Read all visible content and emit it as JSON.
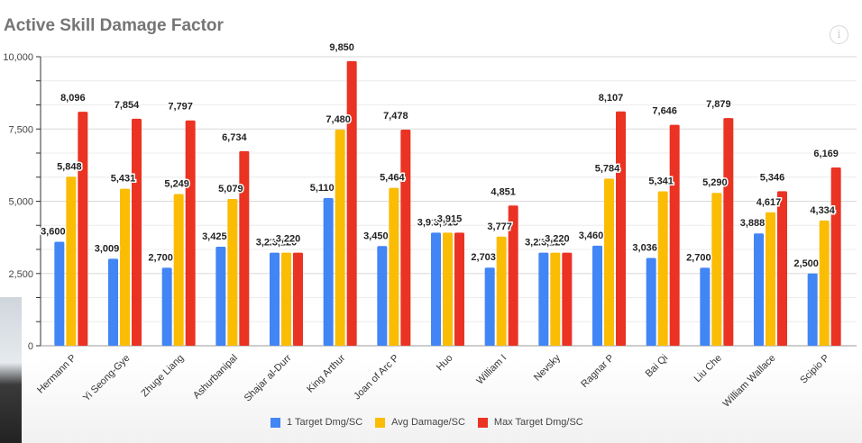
{
  "header": {
    "info_icon": "info-icon",
    "info_glyph": "i"
  },
  "chart_data": {
    "type": "bar",
    "title": "Active Skill Damage Factor",
    "xlabel": "",
    "ylabel": "",
    "ylim": [
      0,
      10000
    ],
    "yticks": [
      0,
      2500,
      5000,
      7500,
      10000
    ],
    "ytick_labels": [
      "0",
      "2,500",
      "5,000",
      "7,500",
      "10,000"
    ],
    "grid": true,
    "legend_position": "bottom",
    "categories": [
      "Hermann P",
      "Yi Seong-Gye",
      "Zhuge Liang",
      "Ashurbanipal",
      "Shajar al-Durr",
      "King Arthur",
      "Joan of Arc P",
      "Huo",
      "William I",
      "Nevsky",
      "Ragnar P",
      "Bai Qi",
      "Liu Che",
      "William Wallace",
      "Scipio P"
    ],
    "series": [
      {
        "name": "1 Target Dmg/SC",
        "color": "#4285f4",
        "values": [
          3600,
          3009,
          2700,
          3425,
          3220,
          5110,
          3450,
          3915,
          2703,
          3220,
          3460,
          3036,
          2700,
          3888,
          2500
        ]
      },
      {
        "name": "Avg Damage/SC",
        "color": "#fbbc04",
        "values": [
          5848,
          5431,
          5249,
          5079,
          3220,
          7480,
          5464,
          3915,
          3777,
          3220,
          5784,
          5341,
          5290,
          4617,
          4334
        ]
      },
      {
        "name": "Max Target Dmg/SC",
        "color": "#ea3323",
        "values": [
          8096,
          7854,
          7797,
          6734,
          3220,
          9850,
          7478,
          3915,
          4851,
          3220,
          8107,
          7646,
          7879,
          5346,
          6169
        ]
      }
    ]
  }
}
